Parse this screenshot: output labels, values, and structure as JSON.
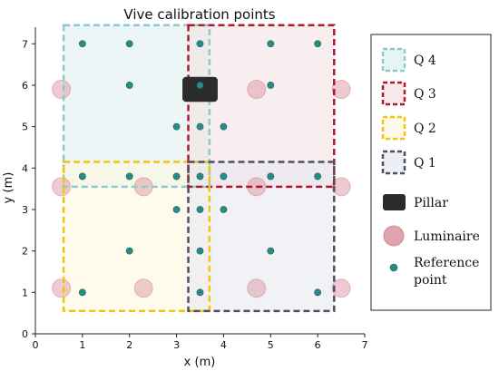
{
  "chart_data": {
    "type": "scatter",
    "title": "Vive calibration points",
    "xlabel": "x (m)",
    "ylabel": "y (m)",
    "xlim": [
      0,
      7
    ],
    "ylim": [
      0,
      7.4
    ],
    "xticks": [
      "0",
      "1",
      "2",
      "3",
      "4",
      "5",
      "6",
      "7"
    ],
    "yticks": [
      "0",
      "1",
      "2",
      "3",
      "4",
      "5",
      "6",
      "7"
    ],
    "grid": false,
    "legend_position": "right",
    "quadrants": [
      {
        "name": "Q 4",
        "x0": 0.6,
        "x1": 3.7,
        "y0": 3.55,
        "y1": 7.45,
        "edge": "#8ec9cc",
        "fill": "#deeff0"
      },
      {
        "name": "Q 3",
        "x0": 3.25,
        "x1": 6.35,
        "y0": 3.55,
        "y1": 7.45,
        "edge": "#b0182e",
        "fill": "#f2e0e2"
      },
      {
        "name": "Q 2",
        "x0": 0.6,
        "x1": 3.7,
        "y0": 0.55,
        "y1": 4.15,
        "edge": "#f2c40d",
        "fill": "#fdf8df"
      },
      {
        "name": "Q 1",
        "x0": 3.25,
        "x1": 6.35,
        "y0": 0.55,
        "y1": 4.15,
        "edge": "#4a5068",
        "fill": "#e6e8ef"
      }
    ],
    "pillar": {
      "name": "Pillar",
      "x": 3.5,
      "y": 5.9,
      "w": 0.75,
      "h": 0.6,
      "color": "#2b2b2b"
    },
    "luminaires": {
      "name": "Luminaire",
      "color": "#d98c98",
      "points": [
        [
          0.55,
          5.9
        ],
        [
          4.7,
          5.9
        ],
        [
          6.5,
          5.9
        ],
        [
          0.55,
          3.55
        ],
        [
          2.3,
          3.55
        ],
        [
          4.7,
          3.55
        ],
        [
          6.5,
          3.55
        ],
        [
          0.55,
          1.1
        ],
        [
          2.3,
          1.1
        ],
        [
          4.7,
          1.1
        ],
        [
          6.5,
          1.1
        ]
      ]
    },
    "reference_points": {
      "name": "Reference point",
      "color": "#2a8a84",
      "points": [
        [
          1,
          7
        ],
        [
          2,
          7
        ],
        [
          3.5,
          7
        ],
        [
          5,
          7
        ],
        [
          6,
          7
        ],
        [
          2,
          6
        ],
        [
          3.5,
          6
        ],
        [
          5,
          6
        ],
        [
          3,
          5
        ],
        [
          3.5,
          5
        ],
        [
          4,
          5
        ],
        [
          1,
          3.8
        ],
        [
          2,
          3.8
        ],
        [
          3,
          3.8
        ],
        [
          3.5,
          3.8
        ],
        [
          4,
          3.8
        ],
        [
          5,
          3.8
        ],
        [
          6,
          3.8
        ],
        [
          3,
          3
        ],
        [
          3.5,
          3
        ],
        [
          4,
          3
        ],
        [
          2,
          2
        ],
        [
          3.5,
          2
        ],
        [
          5,
          2
        ],
        [
          1,
          1
        ],
        [
          3.5,
          1
        ],
        [
          6,
          1
        ]
      ]
    },
    "legend": {
      "entries": [
        {
          "label": "Q 4",
          "kind": "quadrant",
          "edge": "#8ec9cc",
          "fill": "#deeff0"
        },
        {
          "label": "Q 3",
          "kind": "quadrant",
          "edge": "#b0182e",
          "fill": "#f2e0e2"
        },
        {
          "label": "Q 2",
          "kind": "quadrant",
          "edge": "#f2c40d",
          "fill": "#fdf8df"
        },
        {
          "label": "Q 1",
          "kind": "quadrant",
          "edge": "#4a5068",
          "fill": "#e6e8ef"
        },
        {
          "label": "Pillar",
          "kind": "pillar",
          "color": "#2b2b2b"
        },
        {
          "label": "Luminaire",
          "kind": "luminaire",
          "color": "#d98c98"
        },
        {
          "label": "Reference\npoint",
          "kind": "reference",
          "color": "#2a8a84"
        }
      ]
    }
  }
}
